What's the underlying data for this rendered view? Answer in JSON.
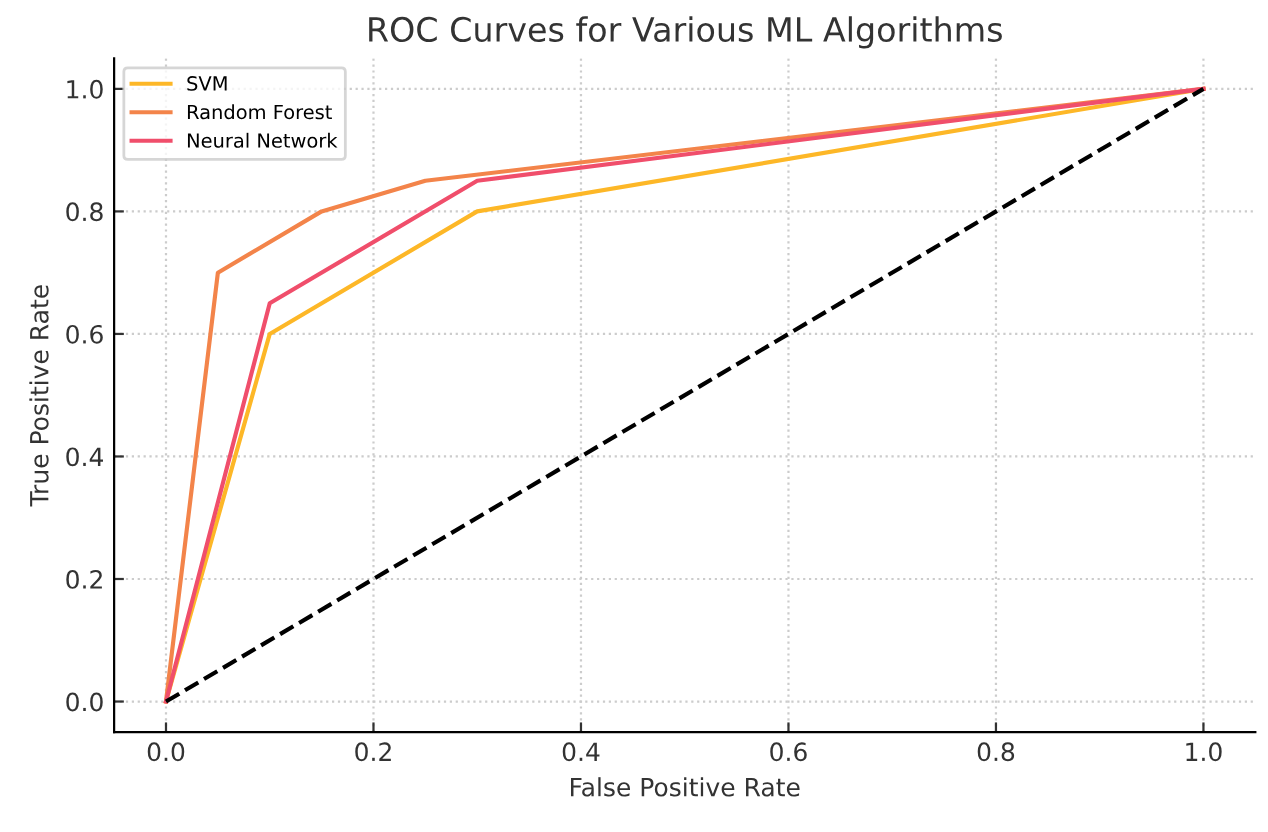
{
  "chart_data": {
    "type": "line",
    "title": "ROC Curves for Various ML Algorithms",
    "xlabel": "False Positive Rate",
    "ylabel": "True Positive Rate",
    "series": [
      {
        "name": "SVM",
        "color": "#fdb727",
        "x": [
          0,
          0.1,
          0.3,
          1
        ],
        "values": [
          0,
          0.6,
          0.8,
          1
        ]
      },
      {
        "name": "Random Forest",
        "color": "#f3844a",
        "x": [
          0,
          0.05,
          0.15,
          0.25,
          1
        ],
        "values": [
          0,
          0.7,
          0.8,
          0.85,
          1
        ]
      },
      {
        "name": "Neural Network",
        "color": "#f04e6b",
        "x": [
          0,
          0.1,
          0.3,
          1
        ],
        "values": [
          0,
          0.65,
          0.85,
          1
        ]
      },
      {
        "color": "#000000",
        "x": [
          0,
          1
        ],
        "values": [
          0,
          1
        ],
        "line_style": "dashed"
      }
    ],
    "xlim": [
      -0.05,
      1.05
    ],
    "ylim": [
      -0.05,
      1.05
    ],
    "xticks": [
      {
        "value": 0,
        "label": "0.0"
      },
      0.2,
      0.4,
      0.6,
      0.8,
      {
        "value": 1,
        "label": "1.0"
      }
    ],
    "yticks": [
      {
        "value": 0,
        "label": "0.0"
      },
      0.2,
      0.4,
      0.6,
      0.8,
      {
        "value": 1,
        "label": "1.0"
      }
    ],
    "grid": true,
    "legend": "top left",
    "line_style": "solid",
    "marker": "none"
  }
}
